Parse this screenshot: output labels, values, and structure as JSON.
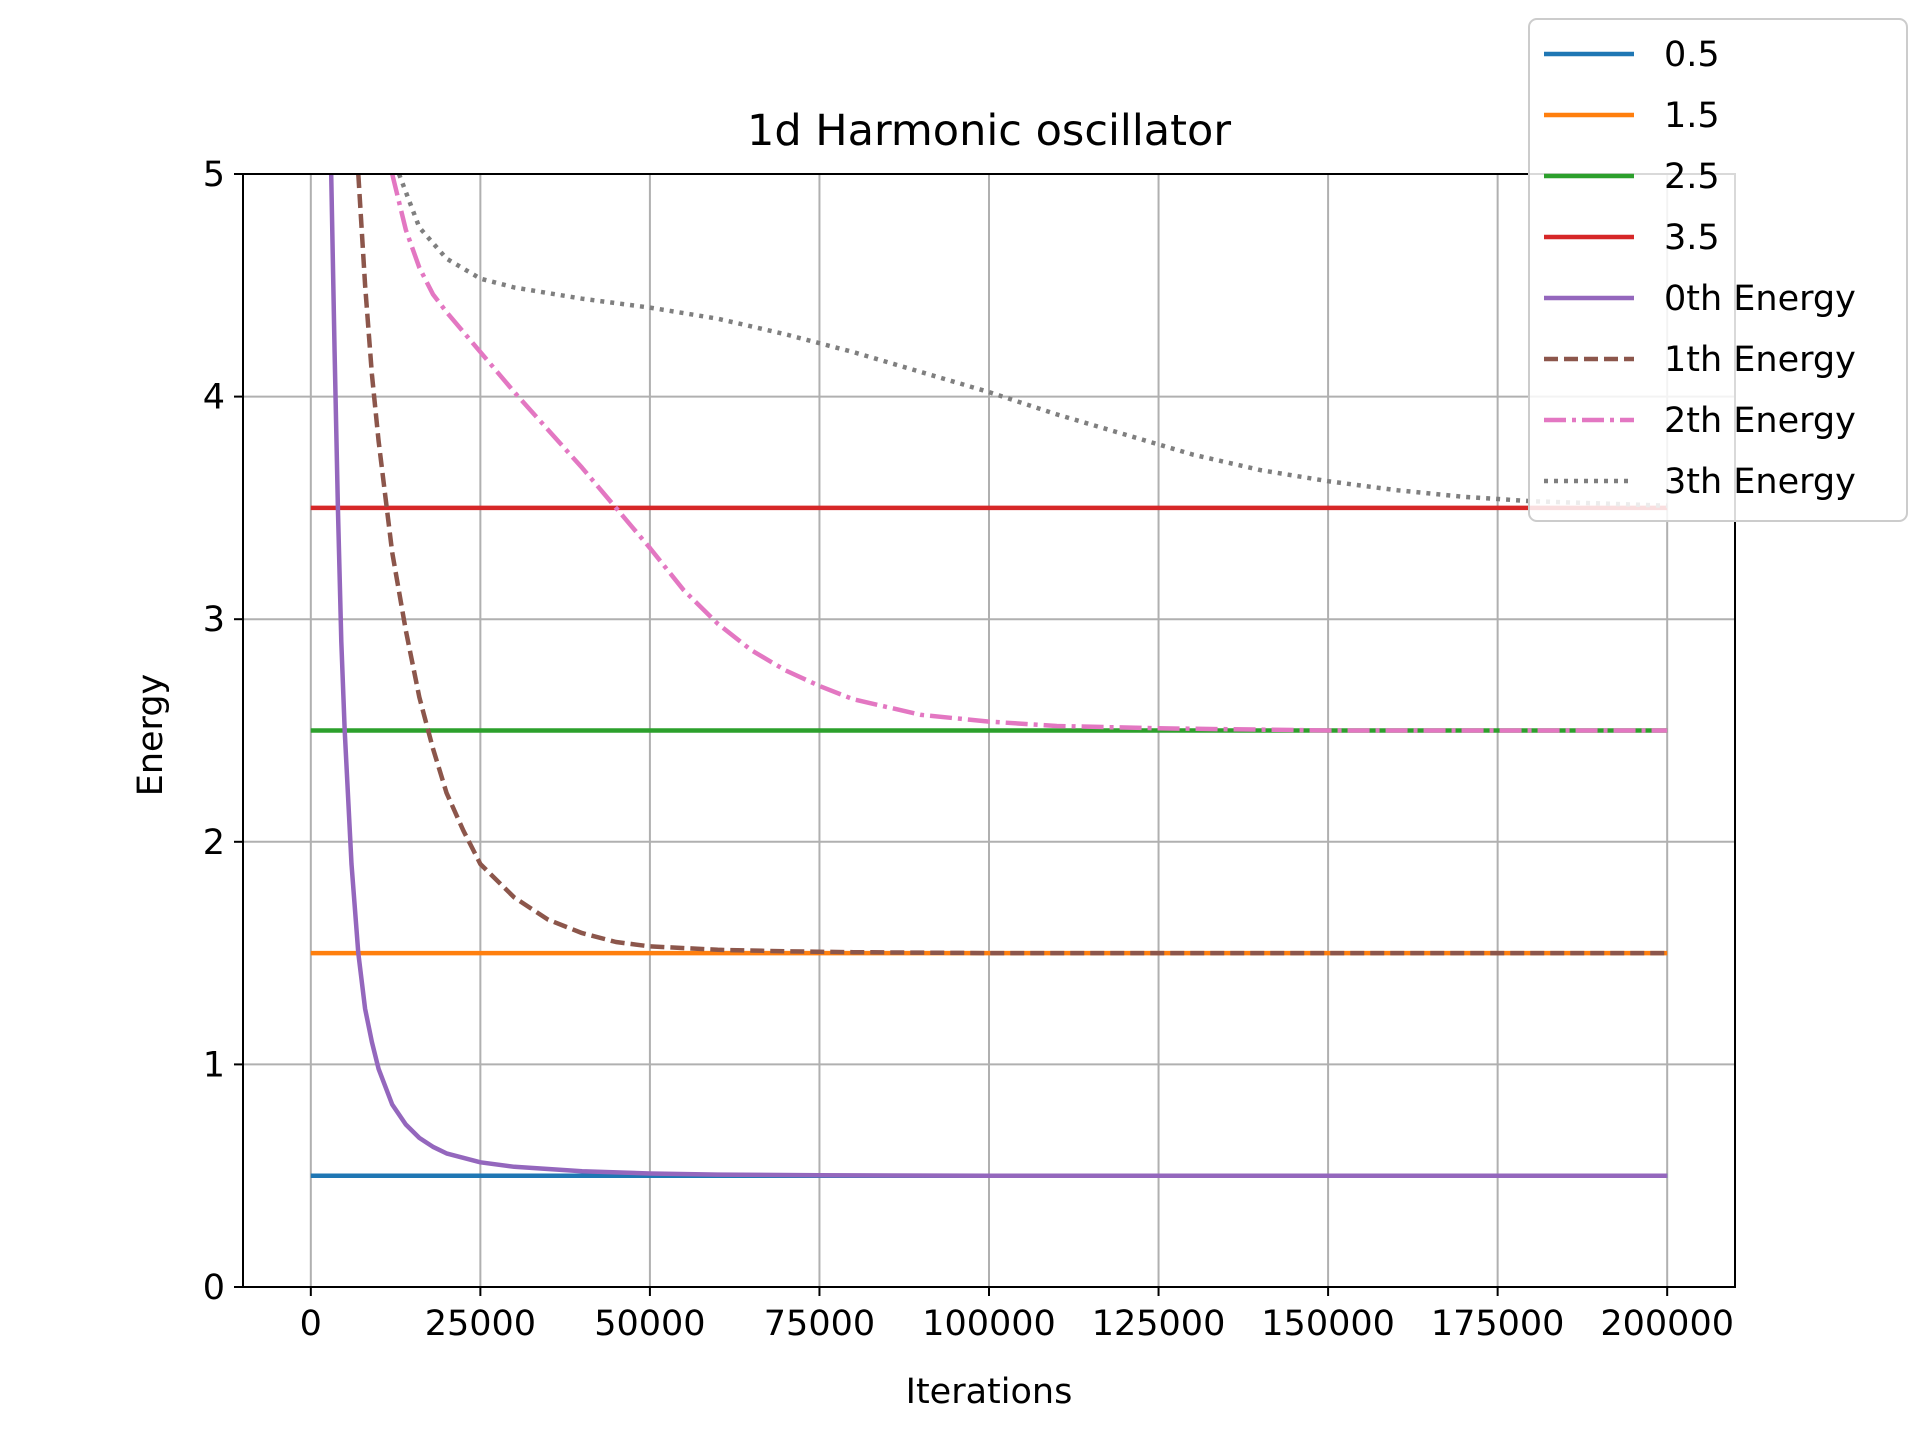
{
  "chart_data": {
    "type": "line",
    "title": "1d Harmonic oscillator",
    "xlabel": "Iterations",
    "ylabel": "Energy",
    "xlim": [
      -10000,
      210000
    ],
    "ylim": [
      0,
      5
    ],
    "grid": true,
    "legend_position": "top-right",
    "x_ticks": [
      0,
      25000,
      50000,
      75000,
      100000,
      125000,
      150000,
      175000,
      200000
    ],
    "x_tick_labels": [
      "0",
      "25000",
      "50000",
      "75000",
      "100000",
      "125000",
      "150000",
      "175000",
      "200000"
    ],
    "y_ticks": [
      0,
      1,
      2,
      3,
      4,
      5
    ],
    "y_tick_labels": [
      "0",
      "1",
      "2",
      "3",
      "4",
      "5"
    ],
    "series": [
      {
        "name": "0.5",
        "color": "#1f77b4",
        "style": "solid",
        "x": [
          0,
          200000
        ],
        "y": [
          0.5,
          0.5
        ]
      },
      {
        "name": "1.5",
        "color": "#ff7f0e",
        "style": "solid",
        "x": [
          0,
          200000
        ],
        "y": [
          1.5,
          1.5
        ]
      },
      {
        "name": "2.5",
        "color": "#2ca02c",
        "style": "solid",
        "x": [
          0,
          200000
        ],
        "y": [
          2.5,
          2.5
        ]
      },
      {
        "name": "3.5",
        "color": "#d62728",
        "style": "solid",
        "x": [
          0,
          200000
        ],
        "y": [
          3.5,
          3.5
        ]
      },
      {
        "name": "0th Energy",
        "color": "#9467bd",
        "style": "solid",
        "x": [
          3000,
          3500,
          4000,
          4500,
          5000,
          6000,
          7000,
          8000,
          9000,
          10000,
          12000,
          14000,
          16000,
          18000,
          20000,
          25000,
          30000,
          40000,
          50000,
          60000,
          75000,
          100000,
          150000,
          200000
        ],
        "y": [
          5.0,
          4.2,
          3.5,
          2.9,
          2.5,
          1.9,
          1.5,
          1.25,
          1.1,
          0.98,
          0.82,
          0.73,
          0.67,
          0.63,
          0.6,
          0.56,
          0.54,
          0.52,
          0.51,
          0.505,
          0.502,
          0.5,
          0.5,
          0.5
        ]
      },
      {
        "name": "1th Energy",
        "color": "#8c564b",
        "style": "dashed",
        "x": [
          7000,
          8000,
          9000,
          10000,
          11000,
          12000,
          14000,
          16000,
          18000,
          20000,
          22500,
          25000,
          30000,
          35000,
          40000,
          45000,
          50000,
          60000,
          70000,
          80000,
          100000,
          150000,
          200000
        ],
        "y": [
          5.0,
          4.5,
          4.1,
          3.8,
          3.55,
          3.3,
          2.95,
          2.65,
          2.42,
          2.22,
          2.05,
          1.9,
          1.75,
          1.65,
          1.59,
          1.55,
          1.53,
          1.515,
          1.508,
          1.504,
          1.5,
          1.5,
          1.5
        ]
      },
      {
        "name": "2th Energy",
        "color": "#e377c2",
        "style": "dashdot",
        "x": [
          12000,
          14000,
          16000,
          18000,
          20000,
          25000,
          30000,
          35000,
          40000,
          45000,
          50000,
          55000,
          60000,
          65000,
          70000,
          75000,
          80000,
          90000,
          100000,
          110000,
          125000,
          150000,
          200000
        ],
        "y": [
          5.0,
          4.75,
          4.58,
          4.46,
          4.38,
          4.2,
          4.02,
          3.85,
          3.68,
          3.5,
          3.32,
          3.13,
          2.98,
          2.86,
          2.77,
          2.7,
          2.64,
          2.57,
          2.54,
          2.52,
          2.51,
          2.5,
          2.5
        ]
      },
      {
        "name": "3th Energy",
        "color": "#7f7f7f",
        "style": "dotted",
        "x": [
          13000,
          16000,
          20000,
          25000,
          30000,
          40000,
          50000,
          60000,
          70000,
          80000,
          90000,
          100000,
          110000,
          120000,
          130000,
          140000,
          150000,
          160000,
          170000,
          180000,
          190000,
          200000
        ],
        "y": [
          5.0,
          4.76,
          4.62,
          4.53,
          4.49,
          4.44,
          4.4,
          4.35,
          4.28,
          4.2,
          4.11,
          4.02,
          3.92,
          3.83,
          3.74,
          3.67,
          3.62,
          3.58,
          3.55,
          3.53,
          3.52,
          3.51
        ]
      }
    ]
  }
}
